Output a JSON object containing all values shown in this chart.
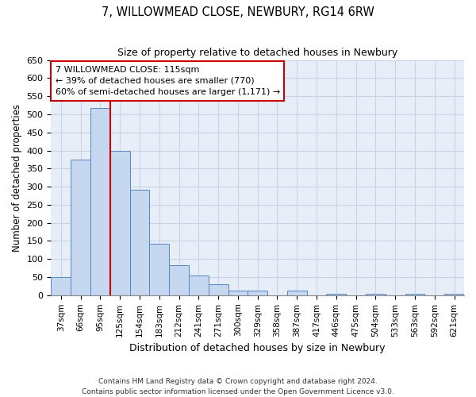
{
  "title": "7, WILLOWMEAD CLOSE, NEWBURY, RG14 6RW",
  "subtitle": "Size of property relative to detached houses in Newbury",
  "xlabel": "Distribution of detached houses by size in Newbury",
  "ylabel": "Number of detached properties",
  "footer_line1": "Contains HM Land Registry data © Crown copyright and database right 2024.",
  "footer_line2": "Contains public sector information licensed under the Open Government Licence v3.0.",
  "categories": [
    "37sqm",
    "66sqm",
    "95sqm",
    "125sqm",
    "154sqm",
    "183sqm",
    "212sqm",
    "241sqm",
    "271sqm",
    "300sqm",
    "329sqm",
    "358sqm",
    "387sqm",
    "417sqm",
    "446sqm",
    "475sqm",
    "504sqm",
    "533sqm",
    "563sqm",
    "592sqm",
    "621sqm"
  ],
  "values": [
    50,
    375,
    518,
    400,
    292,
    142,
    82,
    55,
    30,
    12,
    12,
    0,
    12,
    0,
    5,
    0,
    5,
    0,
    5,
    0,
    5
  ],
  "bar_color": "#c5d8ef",
  "bar_edge_color": "#5585c5",
  "grid_color": "#c8d4e8",
  "background_color": "#e8eef8",
  "property_line_x": 2.5,
  "property_line_color": "#cc0000",
  "annotation_text": "7 WILLOWMEAD CLOSE: 115sqm\n← 39% of detached houses are smaller (770)\n60% of semi-detached houses are larger (1,171) →",
  "annotation_box_color": "#cc0000",
  "ylim": [
    0,
    650
  ],
  "yticks": [
    0,
    50,
    100,
    150,
    200,
    250,
    300,
    350,
    400,
    450,
    500,
    550,
    600,
    650
  ]
}
